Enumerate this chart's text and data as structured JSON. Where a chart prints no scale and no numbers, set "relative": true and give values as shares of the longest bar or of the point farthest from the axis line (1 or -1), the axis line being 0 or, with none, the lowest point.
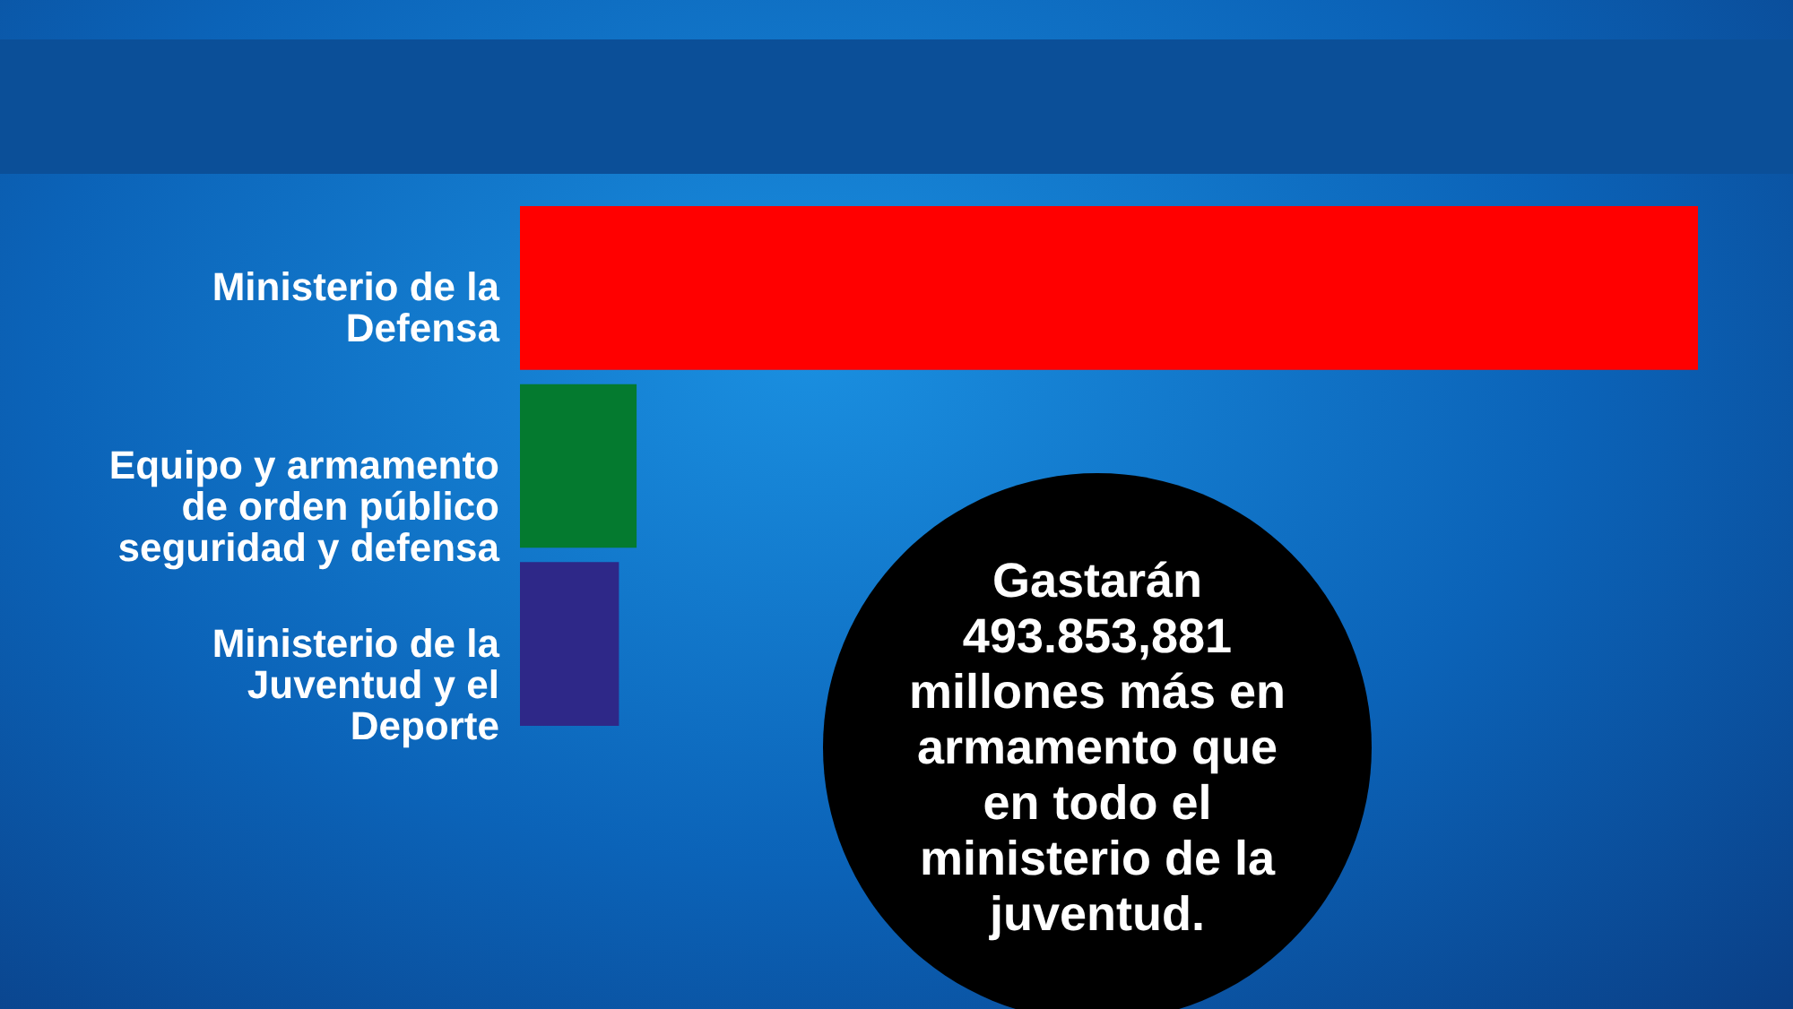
{
  "chart_data": {
    "type": "bar",
    "orientation": "horizontal",
    "relative": true,
    "categories": [
      "Ministerio de la Defensa",
      "Equipo y armamento de orden público seguridad y defensa",
      "Ministerio de la Juventud y el Deporte"
    ],
    "values": [
      1,
      0.099,
      0.084
    ],
    "colors": [
      "#ff0000",
      "#047a2f",
      "#2e2888"
    ],
    "annotations": [
      "Gastarán 493.853,881 millones más en armamento que en todo el ministerio de la juventud."
    ]
  }
}
